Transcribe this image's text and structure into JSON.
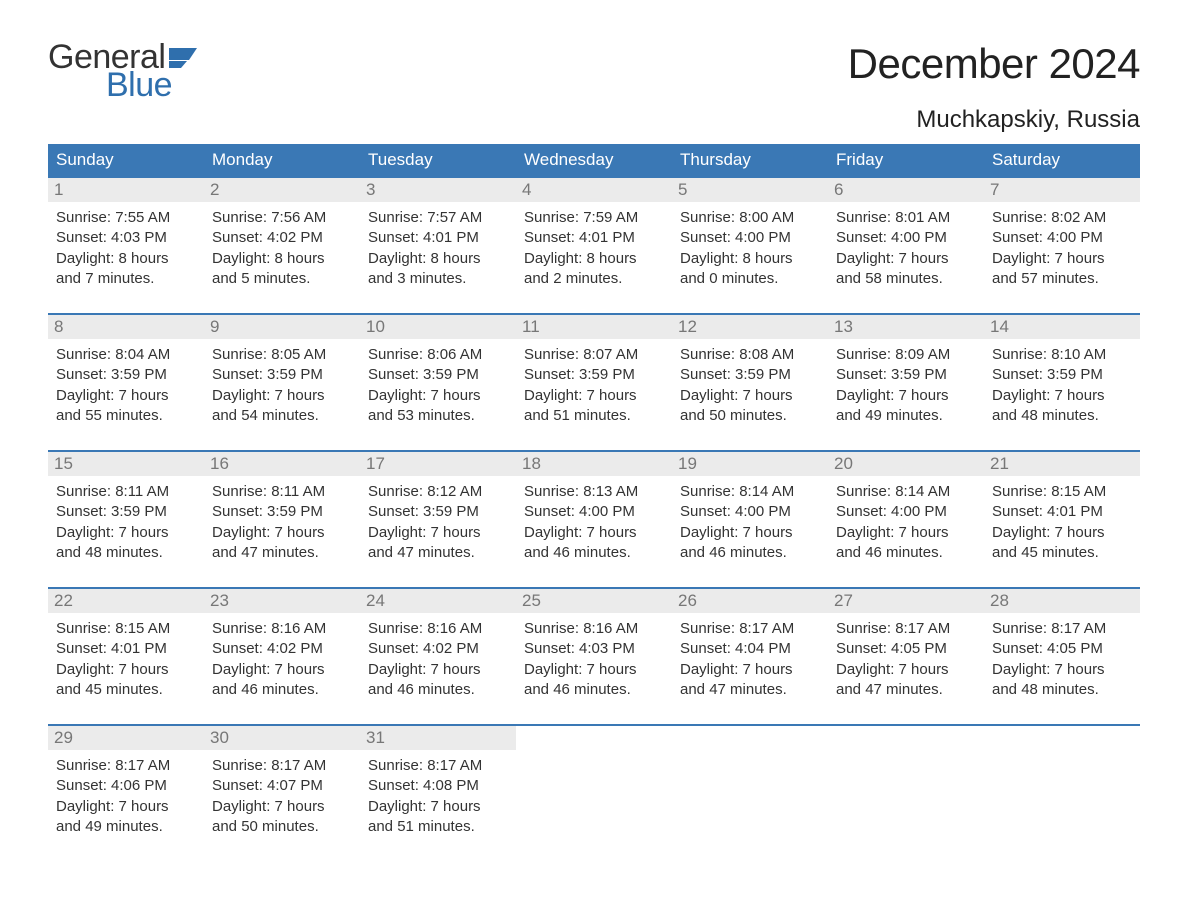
{
  "brand": {
    "word1": "General",
    "word2": "Blue",
    "text_color": "#333333",
    "accent_color": "#2f6fad"
  },
  "header": {
    "month_title": "December 2024",
    "location": "Muchkapskiy, Russia"
  },
  "styling": {
    "header_bg": "#3a78b5",
    "header_text_color": "#ffffff",
    "daynum_bg": "#ebebeb",
    "daynum_color": "#777777",
    "week_border_color": "#3a78b5",
    "body_bg": "#ffffff",
    "body_text_color": "#333333",
    "title_fontsize_pt": 32,
    "location_fontsize_pt": 18,
    "dow_fontsize_pt": 13,
    "cell_fontsize_pt": 11
  },
  "days_of_week": [
    "Sunday",
    "Monday",
    "Tuesday",
    "Wednesday",
    "Thursday",
    "Friday",
    "Saturday"
  ],
  "weeks": [
    [
      {
        "num": "1",
        "sunrise": "Sunrise: 7:55 AM",
        "sunset": "Sunset: 4:03 PM",
        "day1": "Daylight: 8 hours",
        "day2": "and 7 minutes."
      },
      {
        "num": "2",
        "sunrise": "Sunrise: 7:56 AM",
        "sunset": "Sunset: 4:02 PM",
        "day1": "Daylight: 8 hours",
        "day2": "and 5 minutes."
      },
      {
        "num": "3",
        "sunrise": "Sunrise: 7:57 AM",
        "sunset": "Sunset: 4:01 PM",
        "day1": "Daylight: 8 hours",
        "day2": "and 3 minutes."
      },
      {
        "num": "4",
        "sunrise": "Sunrise: 7:59 AM",
        "sunset": "Sunset: 4:01 PM",
        "day1": "Daylight: 8 hours",
        "day2": "and 2 minutes."
      },
      {
        "num": "5",
        "sunrise": "Sunrise: 8:00 AM",
        "sunset": "Sunset: 4:00 PM",
        "day1": "Daylight: 8 hours",
        "day2": "and 0 minutes."
      },
      {
        "num": "6",
        "sunrise": "Sunrise: 8:01 AM",
        "sunset": "Sunset: 4:00 PM",
        "day1": "Daylight: 7 hours",
        "day2": "and 58 minutes."
      },
      {
        "num": "7",
        "sunrise": "Sunrise: 8:02 AM",
        "sunset": "Sunset: 4:00 PM",
        "day1": "Daylight: 7 hours",
        "day2": "and 57 minutes."
      }
    ],
    [
      {
        "num": "8",
        "sunrise": "Sunrise: 8:04 AM",
        "sunset": "Sunset: 3:59 PM",
        "day1": "Daylight: 7 hours",
        "day2": "and 55 minutes."
      },
      {
        "num": "9",
        "sunrise": "Sunrise: 8:05 AM",
        "sunset": "Sunset: 3:59 PM",
        "day1": "Daylight: 7 hours",
        "day2": "and 54 minutes."
      },
      {
        "num": "10",
        "sunrise": "Sunrise: 8:06 AM",
        "sunset": "Sunset: 3:59 PM",
        "day1": "Daylight: 7 hours",
        "day2": "and 53 minutes."
      },
      {
        "num": "11",
        "sunrise": "Sunrise: 8:07 AM",
        "sunset": "Sunset: 3:59 PM",
        "day1": "Daylight: 7 hours",
        "day2": "and 51 minutes."
      },
      {
        "num": "12",
        "sunrise": "Sunrise: 8:08 AM",
        "sunset": "Sunset: 3:59 PM",
        "day1": "Daylight: 7 hours",
        "day2": "and 50 minutes."
      },
      {
        "num": "13",
        "sunrise": "Sunrise: 8:09 AM",
        "sunset": "Sunset: 3:59 PM",
        "day1": "Daylight: 7 hours",
        "day2": "and 49 minutes."
      },
      {
        "num": "14",
        "sunrise": "Sunrise: 8:10 AM",
        "sunset": "Sunset: 3:59 PM",
        "day1": "Daylight: 7 hours",
        "day2": "and 48 minutes."
      }
    ],
    [
      {
        "num": "15",
        "sunrise": "Sunrise: 8:11 AM",
        "sunset": "Sunset: 3:59 PM",
        "day1": "Daylight: 7 hours",
        "day2": "and 48 minutes."
      },
      {
        "num": "16",
        "sunrise": "Sunrise: 8:11 AM",
        "sunset": "Sunset: 3:59 PM",
        "day1": "Daylight: 7 hours",
        "day2": "and 47 minutes."
      },
      {
        "num": "17",
        "sunrise": "Sunrise: 8:12 AM",
        "sunset": "Sunset: 3:59 PM",
        "day1": "Daylight: 7 hours",
        "day2": "and 47 minutes."
      },
      {
        "num": "18",
        "sunrise": "Sunrise: 8:13 AM",
        "sunset": "Sunset: 4:00 PM",
        "day1": "Daylight: 7 hours",
        "day2": "and 46 minutes."
      },
      {
        "num": "19",
        "sunrise": "Sunrise: 8:14 AM",
        "sunset": "Sunset: 4:00 PM",
        "day1": "Daylight: 7 hours",
        "day2": "and 46 minutes."
      },
      {
        "num": "20",
        "sunrise": "Sunrise: 8:14 AM",
        "sunset": "Sunset: 4:00 PM",
        "day1": "Daylight: 7 hours",
        "day2": "and 46 minutes."
      },
      {
        "num": "21",
        "sunrise": "Sunrise: 8:15 AM",
        "sunset": "Sunset: 4:01 PM",
        "day1": "Daylight: 7 hours",
        "day2": "and 45 minutes."
      }
    ],
    [
      {
        "num": "22",
        "sunrise": "Sunrise: 8:15 AM",
        "sunset": "Sunset: 4:01 PM",
        "day1": "Daylight: 7 hours",
        "day2": "and 45 minutes."
      },
      {
        "num": "23",
        "sunrise": "Sunrise: 8:16 AM",
        "sunset": "Sunset: 4:02 PM",
        "day1": "Daylight: 7 hours",
        "day2": "and 46 minutes."
      },
      {
        "num": "24",
        "sunrise": "Sunrise: 8:16 AM",
        "sunset": "Sunset: 4:02 PM",
        "day1": "Daylight: 7 hours",
        "day2": "and 46 minutes."
      },
      {
        "num": "25",
        "sunrise": "Sunrise: 8:16 AM",
        "sunset": "Sunset: 4:03 PM",
        "day1": "Daylight: 7 hours",
        "day2": "and 46 minutes."
      },
      {
        "num": "26",
        "sunrise": "Sunrise: 8:17 AM",
        "sunset": "Sunset: 4:04 PM",
        "day1": "Daylight: 7 hours",
        "day2": "and 47 minutes."
      },
      {
        "num": "27",
        "sunrise": "Sunrise: 8:17 AM",
        "sunset": "Sunset: 4:05 PM",
        "day1": "Daylight: 7 hours",
        "day2": "and 47 minutes."
      },
      {
        "num": "28",
        "sunrise": "Sunrise: 8:17 AM",
        "sunset": "Sunset: 4:05 PM",
        "day1": "Daylight: 7 hours",
        "day2": "and 48 minutes."
      }
    ],
    [
      {
        "num": "29",
        "sunrise": "Sunrise: 8:17 AM",
        "sunset": "Sunset: 4:06 PM",
        "day1": "Daylight: 7 hours",
        "day2": "and 49 minutes."
      },
      {
        "num": "30",
        "sunrise": "Sunrise: 8:17 AM",
        "sunset": "Sunset: 4:07 PM",
        "day1": "Daylight: 7 hours",
        "day2": "and 50 minutes."
      },
      {
        "num": "31",
        "sunrise": "Sunrise: 8:17 AM",
        "sunset": "Sunset: 4:08 PM",
        "day1": "Daylight: 7 hours",
        "day2": "and 51 minutes."
      },
      null,
      null,
      null,
      null
    ]
  ]
}
